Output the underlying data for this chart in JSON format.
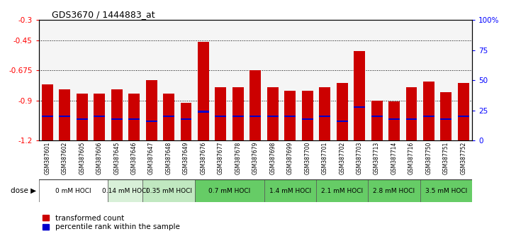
{
  "title": "GDS3670 / 1444883_at",
  "samples": [
    "GSM387601",
    "GSM387602",
    "GSM387605",
    "GSM387606",
    "GSM387645",
    "GSM387646",
    "GSM387647",
    "GSM387648",
    "GSM387649",
    "GSM387676",
    "GSM387677",
    "GSM387678",
    "GSM387679",
    "GSM387698",
    "GSM387699",
    "GSM387700",
    "GSM387701",
    "GSM387702",
    "GSM387703",
    "GSM387713",
    "GSM387714",
    "GSM387716",
    "GSM387750",
    "GSM387751",
    "GSM387752"
  ],
  "red_values": [
    -0.78,
    -0.82,
    -0.85,
    -0.85,
    -0.82,
    -0.85,
    -0.75,
    -0.85,
    -0.92,
    -0.46,
    -0.8,
    -0.8,
    -0.675,
    -0.8,
    -0.83,
    -0.83,
    -0.8,
    -0.77,
    -0.53,
    -0.9,
    -0.91,
    -0.8,
    -0.76,
    -0.84,
    -0.77
  ],
  "blue_fractions": [
    0.2,
    0.2,
    0.18,
    0.2,
    0.18,
    0.18,
    0.16,
    0.2,
    0.18,
    0.24,
    0.2,
    0.2,
    0.2,
    0.2,
    0.2,
    0.18,
    0.2,
    0.16,
    0.28,
    0.2,
    0.18,
    0.18,
    0.2,
    0.18,
    0.2
  ],
  "dose_groups": [
    {
      "label": "0 mM HOCl",
      "start": 0,
      "end": 4,
      "color": "#ffffff"
    },
    {
      "label": "0.14 mM HOCl",
      "start": 4,
      "end": 6,
      "color": "#d8f0d8"
    },
    {
      "label": "0.35 mM HOCl",
      "start": 6,
      "end": 9,
      "color": "#c0e8c0"
    },
    {
      "label": "0.7 mM HOCl",
      "start": 9,
      "end": 13,
      "color": "#66cc66"
    },
    {
      "label": "1.4 mM HOCl",
      "start": 13,
      "end": 16,
      "color": "#66cc66"
    },
    {
      "label": "2.1 mM HOCl",
      "start": 16,
      "end": 19,
      "color": "#66cc66"
    },
    {
      "label": "2.8 mM HOCl",
      "start": 19,
      "end": 22,
      "color": "#66cc66"
    },
    {
      "label": "3.5 mM HOCl",
      "start": 22,
      "end": 25,
      "color": "#66cc66"
    }
  ],
  "ylim_left": [
    -1.2,
    -0.3
  ],
  "ylim_right": [
    0,
    100
  ],
  "yticks_left": [
    -1.2,
    -0.9,
    -0.675,
    -0.45,
    -0.3
  ],
  "yticks_right": [
    0,
    25,
    50,
    75,
    100
  ],
  "hlines": [
    -0.9,
    -0.675,
    -0.45
  ],
  "bar_color": "#cc0000",
  "blue_color": "#0000cc",
  "baseline": -1.2,
  "plot_bg": "#f5f5f5",
  "fig_bg": "#ffffff"
}
